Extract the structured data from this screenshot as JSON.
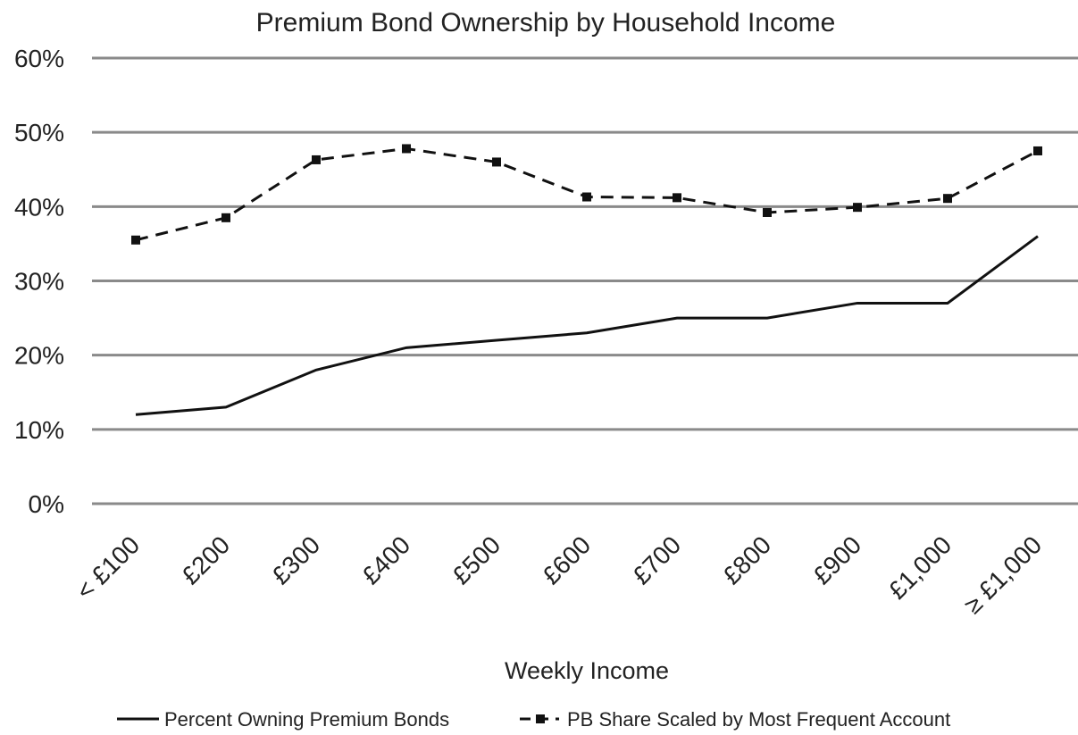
{
  "chart_data": {
    "type": "line",
    "title": "Premium Bond Ownership by Household Income",
    "xlabel": "Weekly Income",
    "ylabel": "",
    "categories": [
      "< £100",
      "£200",
      "£300",
      "£400",
      "£500",
      "£600",
      "£700",
      "£800",
      "£900",
      "£1,000",
      "≥ £1,000"
    ],
    "ylim": [
      0,
      60
    ],
    "yticks": [
      "0%",
      "10%",
      "20%",
      "30%",
      "40%",
      "50%",
      "60%"
    ],
    "grid": true,
    "legend_position": "bottom",
    "series": [
      {
        "name": "Percent Owning Premium Bonds",
        "style": "solid",
        "color": "#111111",
        "values": [
          12,
          13,
          18,
          21,
          22,
          23,
          25,
          25,
          27,
          27,
          36
        ]
      },
      {
        "name": "PB Share Scaled by  Most Frequent Account",
        "style": "dashed-square-markers",
        "color": "#111111",
        "values": [
          35.5,
          38.5,
          46.3,
          47.8,
          46,
          41.3,
          41.2,
          39.2,
          39.9,
          41.1,
          47.5
        ]
      }
    ]
  }
}
